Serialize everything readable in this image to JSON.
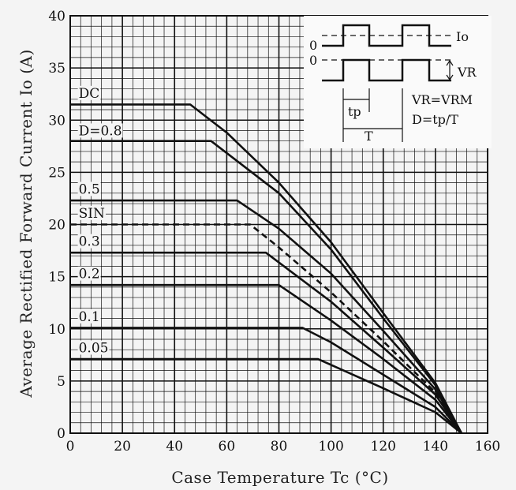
{
  "chart_data": {
    "type": "line",
    "xlabel": "Case Temperature  Tc (°C)",
    "ylabel": "Average Rectified Forward Current  Io (A)",
    "xlim": [
      0,
      160
    ],
    "ylim": [
      0,
      40
    ],
    "x_ticks": [
      "0",
      "20",
      "40",
      "60",
      "80",
      "100",
      "120",
      "140",
      "160"
    ],
    "y_ticks": [
      "0",
      "5",
      "10",
      "15",
      "20",
      "25",
      "30",
      "35",
      "40"
    ],
    "grid": true,
    "series": [
      {
        "name": "DC",
        "style": "solid",
        "points": [
          [
            0,
            31.5
          ],
          [
            46,
            31.5
          ],
          [
            60,
            28.8
          ],
          [
            80,
            24.0
          ],
          [
            100,
            18.3
          ],
          [
            120,
            11.5
          ],
          [
            140,
            4.8
          ],
          [
            150,
            0
          ]
        ]
      },
      {
        "name": "D=0.8",
        "style": "solid",
        "points": [
          [
            0,
            28.0
          ],
          [
            54,
            28.0
          ],
          [
            80,
            23.0
          ],
          [
            100,
            17.6
          ],
          [
            120,
            11.0
          ],
          [
            140,
            4.6
          ],
          [
            150,
            0
          ]
        ]
      },
      {
        "name": "0.5",
        "style": "solid",
        "points": [
          [
            0,
            22.3
          ],
          [
            64,
            22.3
          ],
          [
            80,
            19.6
          ],
          [
            100,
            15.3
          ],
          [
            120,
            9.8
          ],
          [
            140,
            4.2
          ],
          [
            150,
            0
          ]
        ]
      },
      {
        "name": "SIN",
        "style": "dashed",
        "points": [
          [
            0,
            20.0
          ],
          [
            69,
            20.0
          ],
          [
            80,
            17.8
          ],
          [
            100,
            13.5
          ],
          [
            120,
            8.8
          ],
          [
            140,
            3.9
          ],
          [
            150,
            0
          ]
        ]
      },
      {
        "name": "0.3",
        "style": "solid",
        "points": [
          [
            0,
            17.3
          ],
          [
            75,
            17.3
          ],
          [
            100,
            12.6
          ],
          [
            120,
            8.2
          ],
          [
            140,
            3.7
          ],
          [
            150,
            0
          ]
        ]
      },
      {
        "name": "0.2",
        "style": "solid",
        "points": [
          [
            0,
            14.2
          ],
          [
            80,
            14.2
          ],
          [
            100,
            10.8
          ],
          [
            120,
            7.1
          ],
          [
            140,
            3.2
          ],
          [
            150,
            0
          ]
        ]
      },
      {
        "name": "0.1",
        "style": "solid",
        "points": [
          [
            0,
            10.1
          ],
          [
            89,
            10.1
          ],
          [
            100,
            8.7
          ],
          [
            120,
            5.6
          ],
          [
            140,
            2.5
          ],
          [
            150,
            0
          ]
        ]
      },
      {
        "name": "0.05",
        "style": "solid",
        "points": [
          [
            0,
            7.1
          ],
          [
            95,
            7.1
          ],
          [
            120,
            4.3
          ],
          [
            140,
            2.0
          ],
          [
            150,
            0
          ]
        ]
      }
    ],
    "series_labels": [
      {
        "text": "DC",
        "x": 2,
        "y": 32.0
      },
      {
        "text": "D=0.8",
        "x": 2,
        "y": 28.4
      },
      {
        "text": "0.5",
        "x": 2,
        "y": 22.8
      },
      {
        "text": "SIN",
        "x": 2,
        "y": 20.5
      },
      {
        "text": "0.3",
        "x": 2,
        "y": 17.8
      },
      {
        "text": "0.2",
        "x": 2,
        "y": 14.7
      },
      {
        "text": "0.1",
        "x": 2,
        "y": 10.6
      },
      {
        "text": "0.05",
        "x": 2,
        "y": 7.6
      }
    ],
    "inset": {
      "zero_top": "0",
      "zero_bottom": "0",
      "io": "Io",
      "vr": "VR",
      "tp": "tp",
      "T": "T",
      "eq1": "VR=VRM",
      "eq2": "D=tp/T"
    }
  }
}
